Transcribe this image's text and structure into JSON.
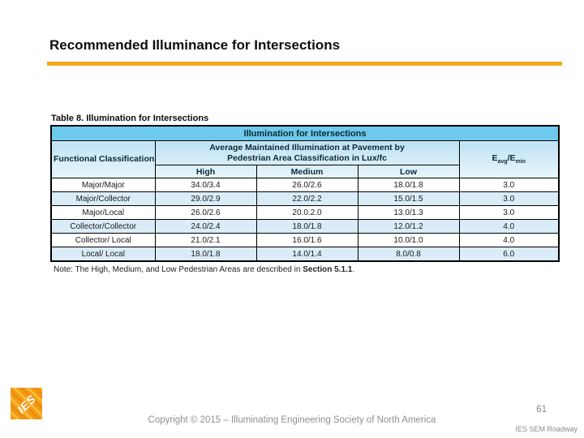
{
  "slide": {
    "title": "Recommended Illuminance for Intersections"
  },
  "table": {
    "caption": "Table 8. Illumination for Intersections",
    "main_header": "Illumination for Intersections",
    "col_functional": "Functional Classification",
    "group_line1": "Average Maintained Illumination at Pavement by",
    "group_line2": "Pedestrian Area Classification in Lux/fc",
    "ratio_header": {
      "e1": "E",
      "sub1": "avg",
      "e2": "/E",
      "sub2": "min"
    },
    "subheaders": [
      "High",
      "Medium",
      "Low"
    ],
    "rows": [
      {
        "classification": "Major/Major",
        "high": "34.0/3.4",
        "medium": "26.0/2.6",
        "low": "18.0/1.8",
        "ratio": "3.0"
      },
      {
        "classification": "Major/Collector",
        "high": "29.0/2.9",
        "medium": "22.0/2.2",
        "low": "15.0/1.5",
        "ratio": "3.0"
      },
      {
        "classification": "Major/Local",
        "high": "26.0/2.6",
        "medium": "20.0.2.0",
        "low": "13.0/1.3",
        "ratio": "3.0"
      },
      {
        "classification": "Collector/Collector",
        "high": "24.0/2.4",
        "medium": "18.0/1.8",
        "low": "12.0/1.2",
        "ratio": "4.0"
      },
      {
        "classification": "Collector/ Local",
        "high": "21.0/2.1",
        "medium": "16.0/1.6",
        "low": "10.0/1.0",
        "ratio": "4.0"
      },
      {
        "classification": "Local/ Local",
        "high": "18.0/1.8",
        "medium": "14.0/1.4",
        "low": "8.0/0.8",
        "ratio": "6.0"
      }
    ],
    "note": {
      "prefix": "Note: The High, Medium, and Low Pedestrian Areas are described in ",
      "bold": "Section 5.1.1",
      "suffix": "."
    }
  },
  "footer": {
    "logo_text": "IES",
    "copyright": "Copyright © 2015 – Illuminating Engineering Society of North America",
    "page_number": "61",
    "deck_name": "IES SEM Roadway"
  },
  "colors": {
    "accent_rule": "#efa81c",
    "table_header_blue": "#6ec9ec",
    "table_header_light_blue": "#c9e7f5",
    "row_alternate_blue": "#d9ecf8",
    "footer_gray": "#8f8f8f",
    "logo_orange": "#f09b15"
  }
}
